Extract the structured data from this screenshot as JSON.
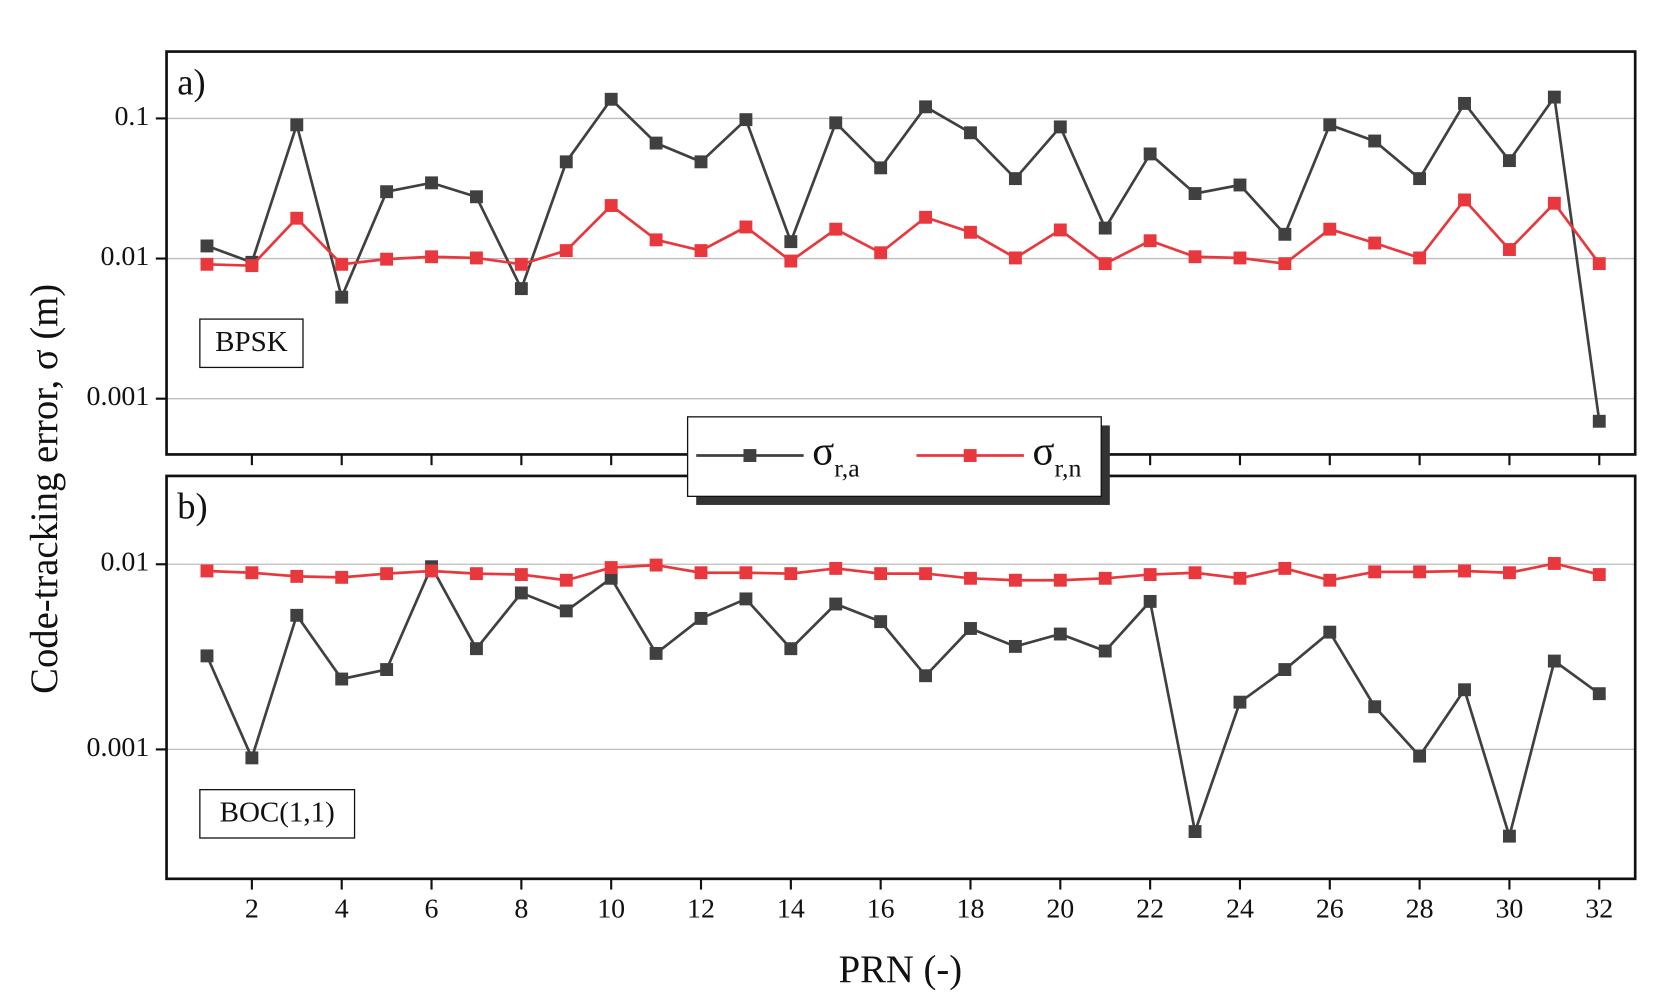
{
  "ylabel": "Code-tracking error, σ (m)",
  "xlabel": "PRN (-)",
  "chart_data": [
    {
      "type": "line",
      "panel_label": "a)",
      "annotation": "BPSK",
      "log_scale": true,
      "grid": true,
      "x": [
        1,
        2,
        3,
        4,
        5,
        6,
        7,
        8,
        9,
        10,
        11,
        12,
        13,
        14,
        15,
        16,
        17,
        18,
        19,
        20,
        21,
        22,
        23,
        24,
        25,
        26,
        27,
        28,
        29,
        30,
        31,
        32
      ],
      "xlim": [
        0.1,
        32.8
      ],
      "xticks": [
        2,
        4,
        6,
        8,
        10,
        12,
        14,
        16,
        18,
        20,
        22,
        24,
        26,
        28,
        30,
        32
      ],
      "ylim": [
        0.0004,
        0.3
      ],
      "yticks": [
        0.001,
        0.01,
        0.1
      ],
      "series": [
        {
          "name": "σr,a",
          "color": "#404040",
          "values": [
            0.0123,
            0.0094,
            0.09,
            0.0053,
            0.03,
            0.0347,
            0.0276,
            0.0061,
            0.049,
            0.137,
            0.0667,
            0.049,
            0.098,
            0.0132,
            0.093,
            0.0444,
            0.121,
            0.079,
            0.0372,
            0.087,
            0.0165,
            0.0558,
            0.0291,
            0.0335,
            0.0149,
            0.09,
            0.069,
            0.0372,
            0.128,
            0.05,
            0.142,
            0.00069
          ]
        },
        {
          "name": "σr,n",
          "color": "#e8383d",
          "values": [
            0.0091,
            0.0089,
            0.0194,
            0.0091,
            0.0099,
            0.0103,
            0.0101,
            0.0091,
            0.0114,
            0.0239,
            0.0136,
            0.0114,
            0.0168,
            0.0096,
            0.0162,
            0.011,
            0.0197,
            0.0154,
            0.0101,
            0.016,
            0.0092,
            0.0134,
            0.0103,
            0.0101,
            0.0092,
            0.0162,
            0.0129,
            0.0101,
            0.0262,
            0.0116,
            0.0248,
            0.0092
          ]
        }
      ]
    },
    {
      "type": "line",
      "panel_label": "b)",
      "annotation": "BOC(1,1)",
      "log_scale": true,
      "grid": true,
      "x": [
        1,
        2,
        3,
        4,
        5,
        6,
        7,
        8,
        9,
        10,
        11,
        12,
        13,
        14,
        15,
        16,
        17,
        18,
        19,
        20,
        21,
        22,
        23,
        24,
        25,
        26,
        27,
        28,
        29,
        30,
        31,
        32
      ],
      "xlim": [
        0.1,
        32.8
      ],
      "xticks": [
        2,
        4,
        6,
        8,
        10,
        12,
        14,
        16,
        18,
        20,
        22,
        24,
        26,
        28,
        30,
        32
      ],
      "ylim": [
        0.0002,
        0.03
      ],
      "yticks": [
        0.001,
        0.01
      ],
      "series": [
        {
          "color": "#404040",
          "values": [
            0.0032,
            0.0009,
            0.0053,
            0.0024,
            0.0027,
            0.0097,
            0.0035,
            0.007,
            0.0056,
            0.0084,
            0.0033,
            0.0051,
            0.0065,
            0.0035,
            0.0061,
            0.0049,
            0.0025,
            0.0045,
            0.0036,
            0.0042,
            0.0034,
            0.0063,
            0.00036,
            0.0018,
            0.0027,
            0.0043,
            0.0017,
            0.00092,
            0.0021,
            0.00034,
            0.003,
            0.002
          ]
        },
        {
          "color": "#e8383d",
          "values": [
            0.0092,
            0.009,
            0.0086,
            0.0085,
            0.0089,
            0.0092,
            0.0089,
            0.0088,
            0.0082,
            0.0096,
            0.0099,
            0.009,
            0.009,
            0.0089,
            0.0095,
            0.0089,
            0.0089,
            0.0084,
            0.0082,
            0.0082,
            0.0084,
            0.0088,
            0.009,
            0.0084,
            0.0095,
            0.0082,
            0.0091,
            0.0091,
            0.0092,
            0.009,
            0.0101,
            0.0088
          ]
        }
      ]
    }
  ]
}
